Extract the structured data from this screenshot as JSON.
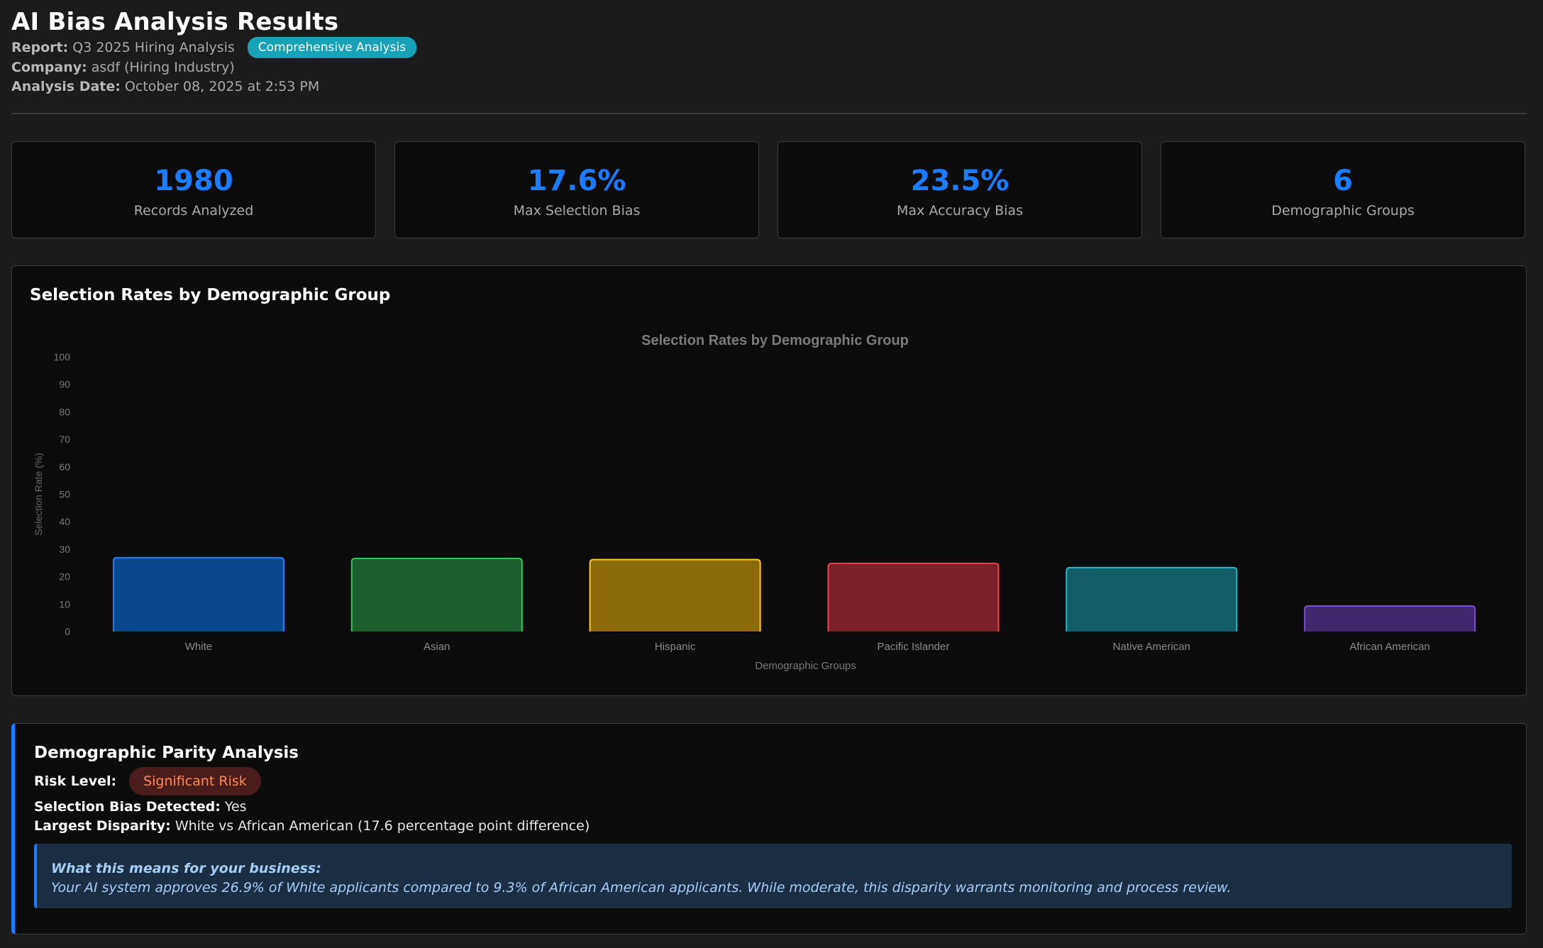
{
  "header": {
    "title": "AI Bias Analysis Results",
    "report_label": "Report:",
    "report_value": "Q3 2025 Hiring Analysis",
    "badge": "Comprehensive Analysis",
    "company_label": "Company:",
    "company_value": "asdf (Hiring Industry)",
    "date_label": "Analysis Date:",
    "date_value": "October 08, 2025 at 2:53 PM"
  },
  "stats": [
    {
      "value": "1980",
      "label": "Records Analyzed"
    },
    {
      "value": "17.6%",
      "label": "Max Selection Bias"
    },
    {
      "value": "23.5%",
      "label": "Max Accuracy Bias"
    },
    {
      "value": "6",
      "label": "Demographic Groups"
    }
  ],
  "chart_card": {
    "title": "Selection Rates by Demographic Group"
  },
  "chart_data": {
    "type": "bar",
    "title": "Selection Rates by Demographic Group",
    "xlabel": "Demographic Groups",
    "ylabel": "Selection Rate (%)",
    "ylim": [
      0,
      100
    ],
    "yticks": [
      0,
      10,
      20,
      30,
      40,
      50,
      60,
      70,
      80,
      90,
      100
    ],
    "categories": [
      "White",
      "Asian",
      "Hispanic",
      "Pacific Islander",
      "Native American",
      "African American"
    ],
    "values": [
      26.9,
      26.6,
      26.2,
      24.8,
      23.3,
      9.3
    ],
    "colors": [
      {
        "fill": "#08478c",
        "stroke": "#1a7cff"
      },
      {
        "fill": "#1b5f2e",
        "stroke": "#34c35a"
      },
      {
        "fill": "#8a6a0a",
        "stroke": "#ffc91a"
      },
      {
        "fill": "#7b2028",
        "stroke": "#e8414f"
      },
      {
        "fill": "#135e66",
        "stroke": "#1fb8c8"
      },
      {
        "fill": "#40286e",
        "stroke": "#7a4bd8"
      }
    ],
    "grid": false,
    "legend": "none"
  },
  "parity": {
    "title": "Demographic Parity Analysis",
    "risk_label": "Risk Level:",
    "risk_value": "Significant Risk",
    "bias_label": "Selection Bias Detected:",
    "bias_value": "Yes",
    "disparity_label": "Largest Disparity:",
    "disparity_value": "White vs African American (17.6 percentage point difference)",
    "info_title": "What this means for your business:",
    "info_text": "Your AI system approves 26.9% of White applicants compared to 9.3% of African American applicants. While moderate, this disparity warrants monitoring and process review."
  },
  "colors": {
    "accent": "#1a7cff",
    "badge": "#17a2b8",
    "risk": "#ff8a4c"
  }
}
